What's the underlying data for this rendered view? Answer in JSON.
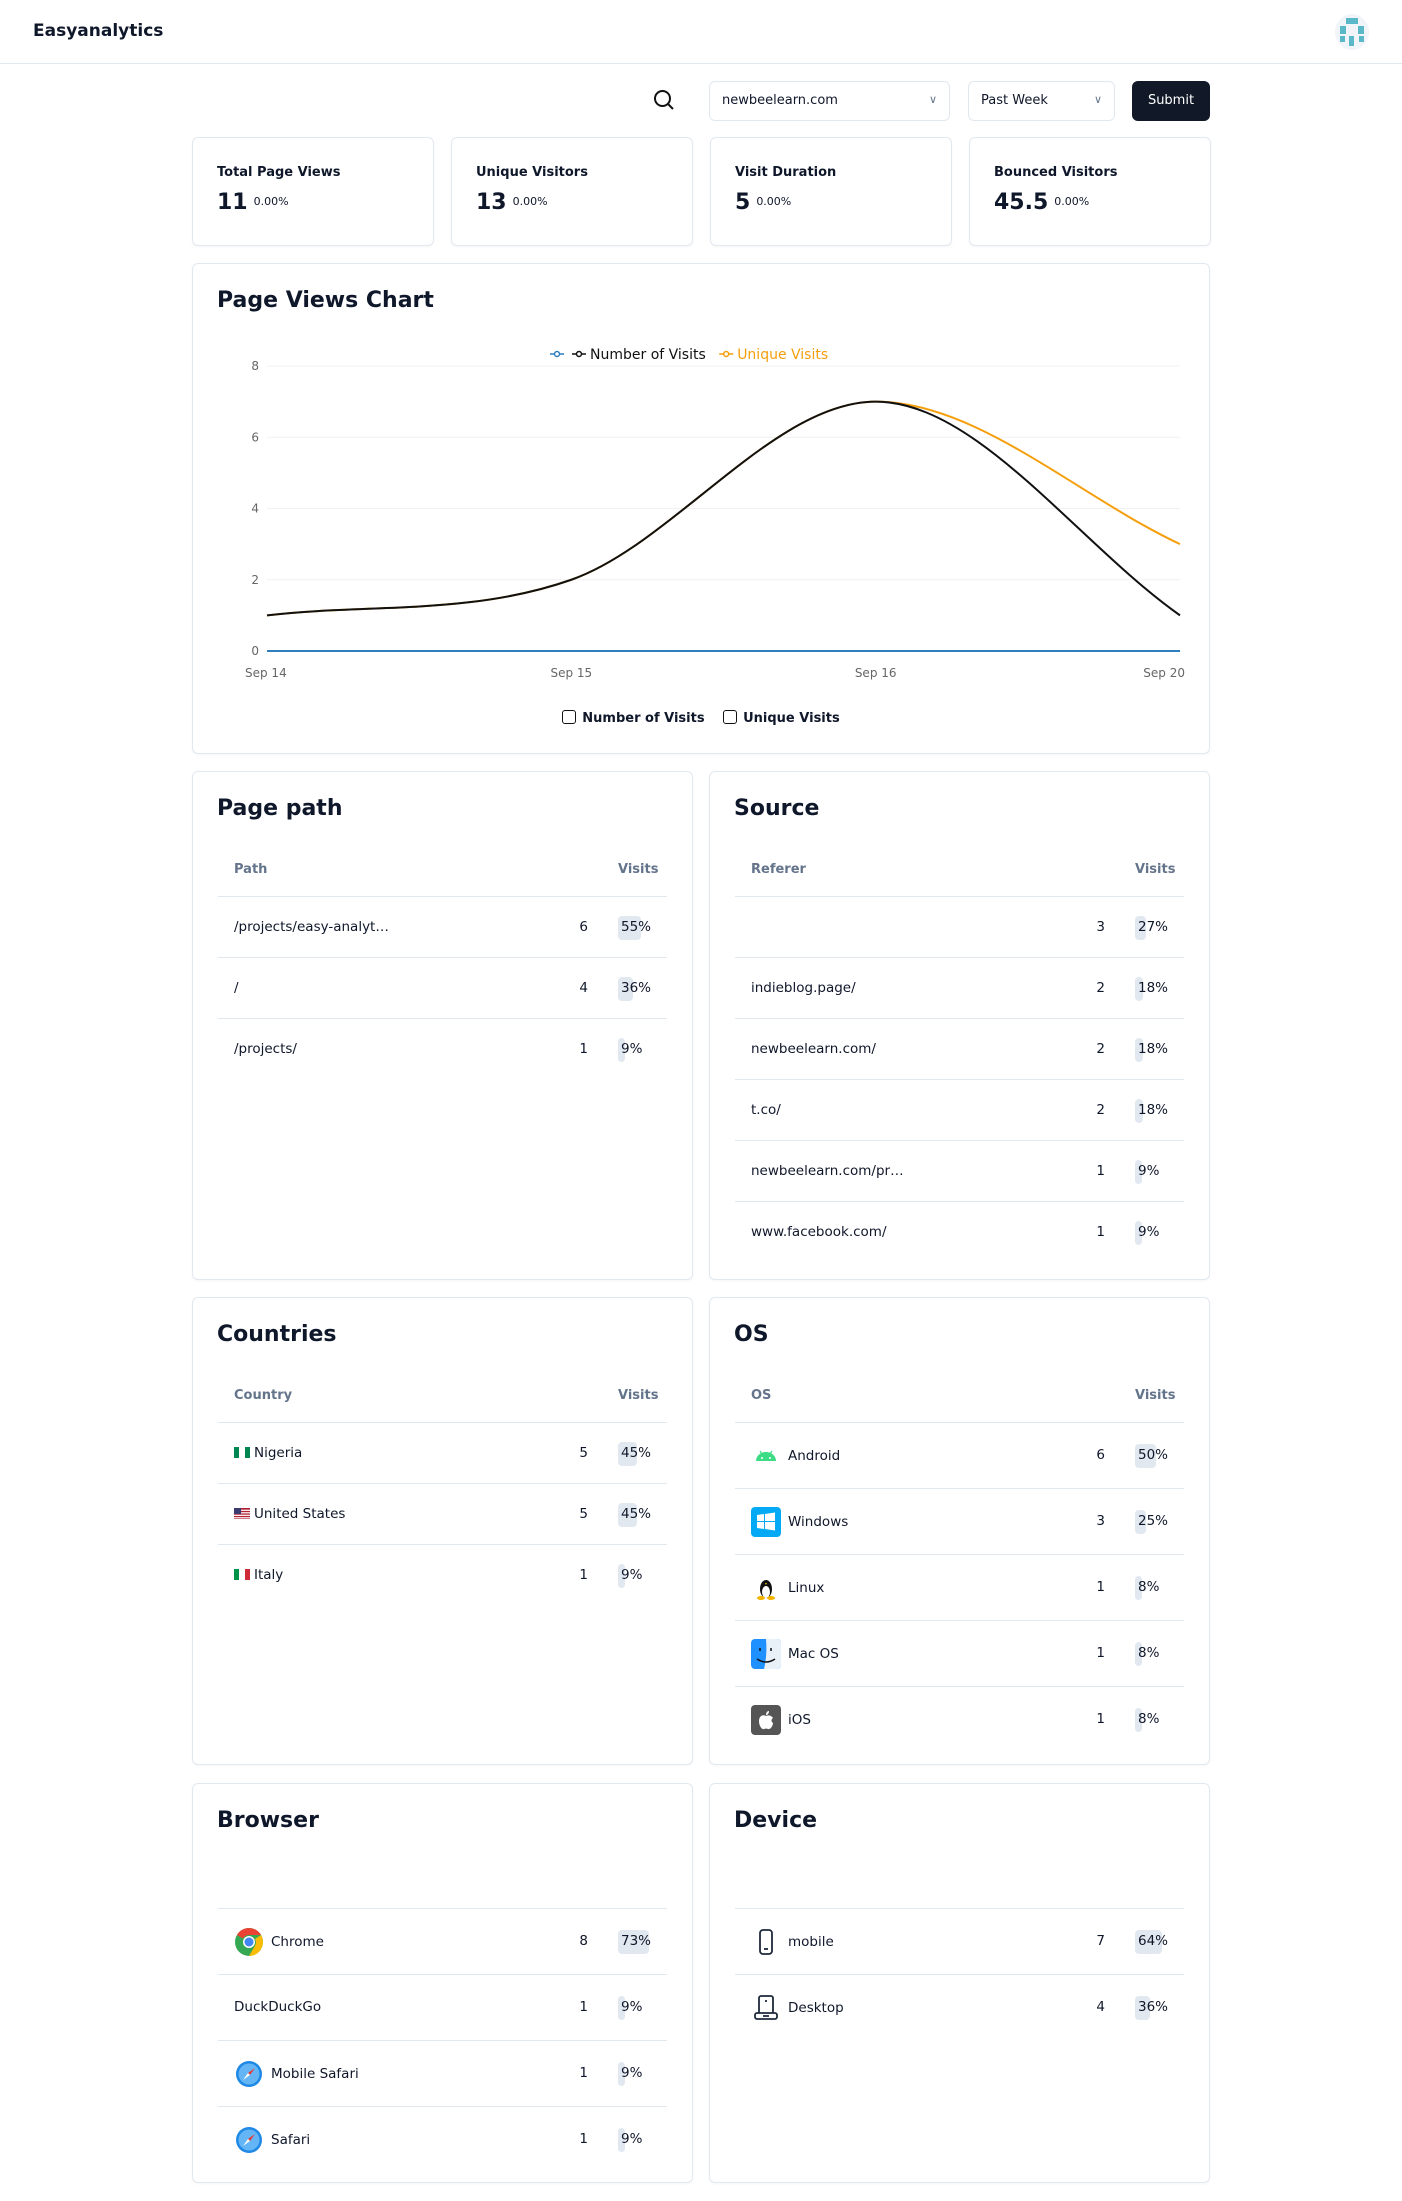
{
  "header": {
    "brand": "Easyanalytics"
  },
  "controls": {
    "domain": "newbeelearn.com",
    "period": "Past Week",
    "submit": "Submit"
  },
  "stats": [
    {
      "label": "Total Page Views",
      "value": "11",
      "change": "0.00%"
    },
    {
      "label": "Unique Visitors",
      "value": "13",
      "change": "0.00%"
    },
    {
      "label": "Visit Duration",
      "value": "5",
      "change": "0.00%"
    },
    {
      "label": "Bounced Visitors",
      "value": "45.5",
      "change": "0.00%"
    }
  ],
  "chart_title": "Page Views Chart",
  "chart_data": {
    "type": "line",
    "categories": [
      "Sep 14",
      "Sep 15",
      "Sep 16",
      "Sep 20"
    ],
    "series": [
      {
        "name": "",
        "color": "#2f7fbf",
        "values": [
          0,
          0,
          0,
          0
        ]
      },
      {
        "name": "Number of Visits",
        "color": "#111111",
        "values": [
          1,
          2,
          7,
          1
        ]
      },
      {
        "name": "Unique Visits",
        "color": "#f59e0b",
        "values": [
          1,
          2,
          7,
          3
        ]
      }
    ],
    "yticks": [
      0,
      2,
      4,
      6,
      8
    ],
    "ylim": [
      0,
      8
    ],
    "legend": "top",
    "grid": true,
    "bottom_toggles": [
      "Number of Visits",
      "Unique Visits"
    ]
  },
  "tables": {
    "pagepath": {
      "title": "Page path",
      "col1": "Path",
      "col2": "Visits",
      "rows": [
        {
          "name": "/projects/easy-analyt…",
          "count": "6",
          "pct": "55%",
          "p": 55
        },
        {
          "name": "/",
          "count": "4",
          "pct": "36%",
          "p": 36
        },
        {
          "name": "/projects/",
          "count": "1",
          "pct": "9%",
          "p": 9
        }
      ]
    },
    "source": {
      "title": "Source",
      "col1": "Referer",
      "col2": "Visits",
      "rows": [
        {
          "name": "",
          "count": "3",
          "pct": "27%",
          "p": 27
        },
        {
          "name": "indieblog.page/",
          "count": "2",
          "pct": "18%",
          "p": 18
        },
        {
          "name": "newbeelearn.com/",
          "count": "2",
          "pct": "18%",
          "p": 18
        },
        {
          "name": "t.co/",
          "count": "2",
          "pct": "18%",
          "p": 18
        },
        {
          "name": "newbeelearn.com/pr…",
          "count": "1",
          "pct": "9%",
          "p": 9
        },
        {
          "name": "www.facebook.com/",
          "count": "1",
          "pct": "9%",
          "p": 9
        }
      ]
    },
    "countries": {
      "title": "Countries",
      "col1": "Country",
      "col2": "Visits",
      "rows": [
        {
          "name": "Nigeria",
          "icon": "flag-ng",
          "count": "5",
          "pct": "45%",
          "p": 45
        },
        {
          "name": "United States",
          "icon": "flag-us",
          "count": "5",
          "pct": "45%",
          "p": 45
        },
        {
          "name": "Italy",
          "icon": "flag-it",
          "count": "1",
          "pct": "9%",
          "p": 9
        }
      ]
    },
    "os": {
      "title": "OS",
      "col1": "OS",
      "col2": "Visits",
      "rows": [
        {
          "name": "Android",
          "icon": "android",
          "count": "6",
          "pct": "50%",
          "p": 50
        },
        {
          "name": "Windows",
          "icon": "windows",
          "count": "3",
          "pct": "25%",
          "p": 25
        },
        {
          "name": "Linux",
          "icon": "linux",
          "count": "1",
          "pct": "8%",
          "p": 8
        },
        {
          "name": "Mac OS",
          "icon": "macos",
          "count": "1",
          "pct": "8%",
          "p": 8
        },
        {
          "name": "iOS",
          "icon": "ios",
          "count": "1",
          "pct": "8%",
          "p": 8
        }
      ]
    },
    "browser": {
      "title": "Browser",
      "rows": [
        {
          "name": "Chrome",
          "icon": "chrome",
          "count": "8",
          "pct": "73%",
          "p": 73
        },
        {
          "name": "DuckDuckGo",
          "count": "1",
          "pct": "9%",
          "p": 9
        },
        {
          "name": "Mobile Safari",
          "icon": "safari",
          "count": "1",
          "pct": "9%",
          "p": 9
        },
        {
          "name": "Safari",
          "icon": "safari",
          "count": "1",
          "pct": "9%",
          "p": 9
        }
      ]
    },
    "device": {
      "title": "Device",
      "rows": [
        {
          "name": "mobile",
          "icon": "mobile",
          "count": "7",
          "pct": "64%",
          "p": 64
        },
        {
          "name": "Desktop",
          "icon": "desktop",
          "count": "4",
          "pct": "36%",
          "p": 36
        }
      ]
    }
  }
}
